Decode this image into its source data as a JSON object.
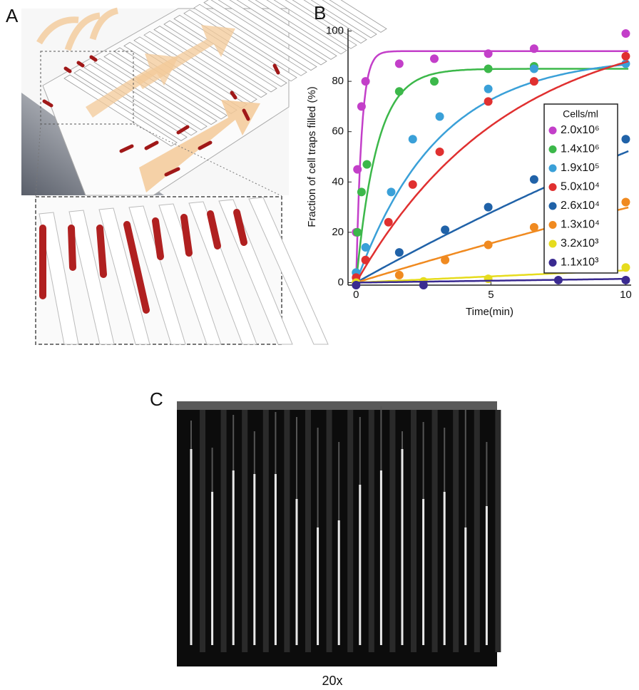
{
  "panels": {
    "a": "A",
    "b": "B",
    "c": "C"
  },
  "image_caption": "20x",
  "chart_data": {
    "type": "scatter",
    "xlabel": "Time(min)",
    "ylabel": "Fraction of cell traps filled (%)",
    "legend_title": "Cells/ml",
    "xlim": [
      -0.3,
      10.2
    ],
    "ylim": [
      -1,
      101
    ],
    "xticks": [
      0,
      5,
      10
    ],
    "yticks": [
      0,
      20,
      40,
      60,
      80,
      100
    ],
    "series": [
      {
        "name": "2.0x10⁶",
        "color": "#c33fc9",
        "x": [
          0,
          0.05,
          0.2,
          0.35,
          1.6,
          2.9,
          4.9,
          6.6,
          10
        ],
        "values": [
          20,
          45,
          70,
          80,
          87,
          89,
          91,
          93,
          99
        ],
        "fit_max": 92,
        "fit_rate": 5
      },
      {
        "name": "1.4x10⁶",
        "color": "#3cb84a",
        "x": [
          0,
          0.05,
          0.2,
          0.4,
          1.6,
          2.9,
          4.9,
          6.6
        ],
        "values": [
          4,
          20,
          36,
          47,
          76,
          80,
          85,
          86
        ],
        "fit_max": 85,
        "fit_rate": 1.3
      },
      {
        "name": "1.9x10⁵",
        "color": "#3aa0d8",
        "x": [
          0,
          0.35,
          1.3,
          2.1,
          3.1,
          4.9,
          6.6,
          10
        ],
        "values": [
          4,
          14,
          36,
          57,
          66,
          77,
          85,
          87
        ],
        "fit_max": 90,
        "fit_rate": 0.33
      },
      {
        "name": "5.0x10⁴",
        "color": "#e03030",
        "x": [
          0,
          0.35,
          1.2,
          2.1,
          3.1,
          4.9,
          6.6,
          10
        ],
        "values": [
          2,
          9,
          24,
          39,
          52,
          72,
          80,
          90
        ],
        "fit_max": 105,
        "fit_rate": 0.18
      },
      {
        "name": "2.6x10⁴",
        "color": "#2062a8",
        "x": [
          0,
          1.6,
          3.3,
          4.9,
          6.6,
          10
        ],
        "values": [
          0,
          12,
          21,
          30,
          41,
          57
        ],
        "fit_max": 200,
        "fit_rate": 0.03
      },
      {
        "name": "1.3x10⁴",
        "color": "#f08a20",
        "x": [
          0,
          1.6,
          3.3,
          4.9,
          6.6,
          10
        ],
        "values": [
          0,
          3,
          9,
          15,
          22,
          32
        ],
        "fit_max": 150,
        "fit_rate": 0.022
      },
      {
        "name": "3.2x10³",
        "color": "#e6dc1e",
        "x": [
          0,
          2.5,
          4.9,
          10
        ],
        "values": [
          0,
          0.5,
          1.5,
          6
        ],
        "fit_max": 100,
        "fit_rate": 0.005
      },
      {
        "name": "1.1x10³",
        "color": "#3a2a90",
        "x": [
          0,
          2.5,
          7.5,
          10
        ],
        "values": [
          -1,
          -1,
          1,
          1
        ],
        "fit_max": 100,
        "fit_rate": 0.0015
      }
    ]
  }
}
